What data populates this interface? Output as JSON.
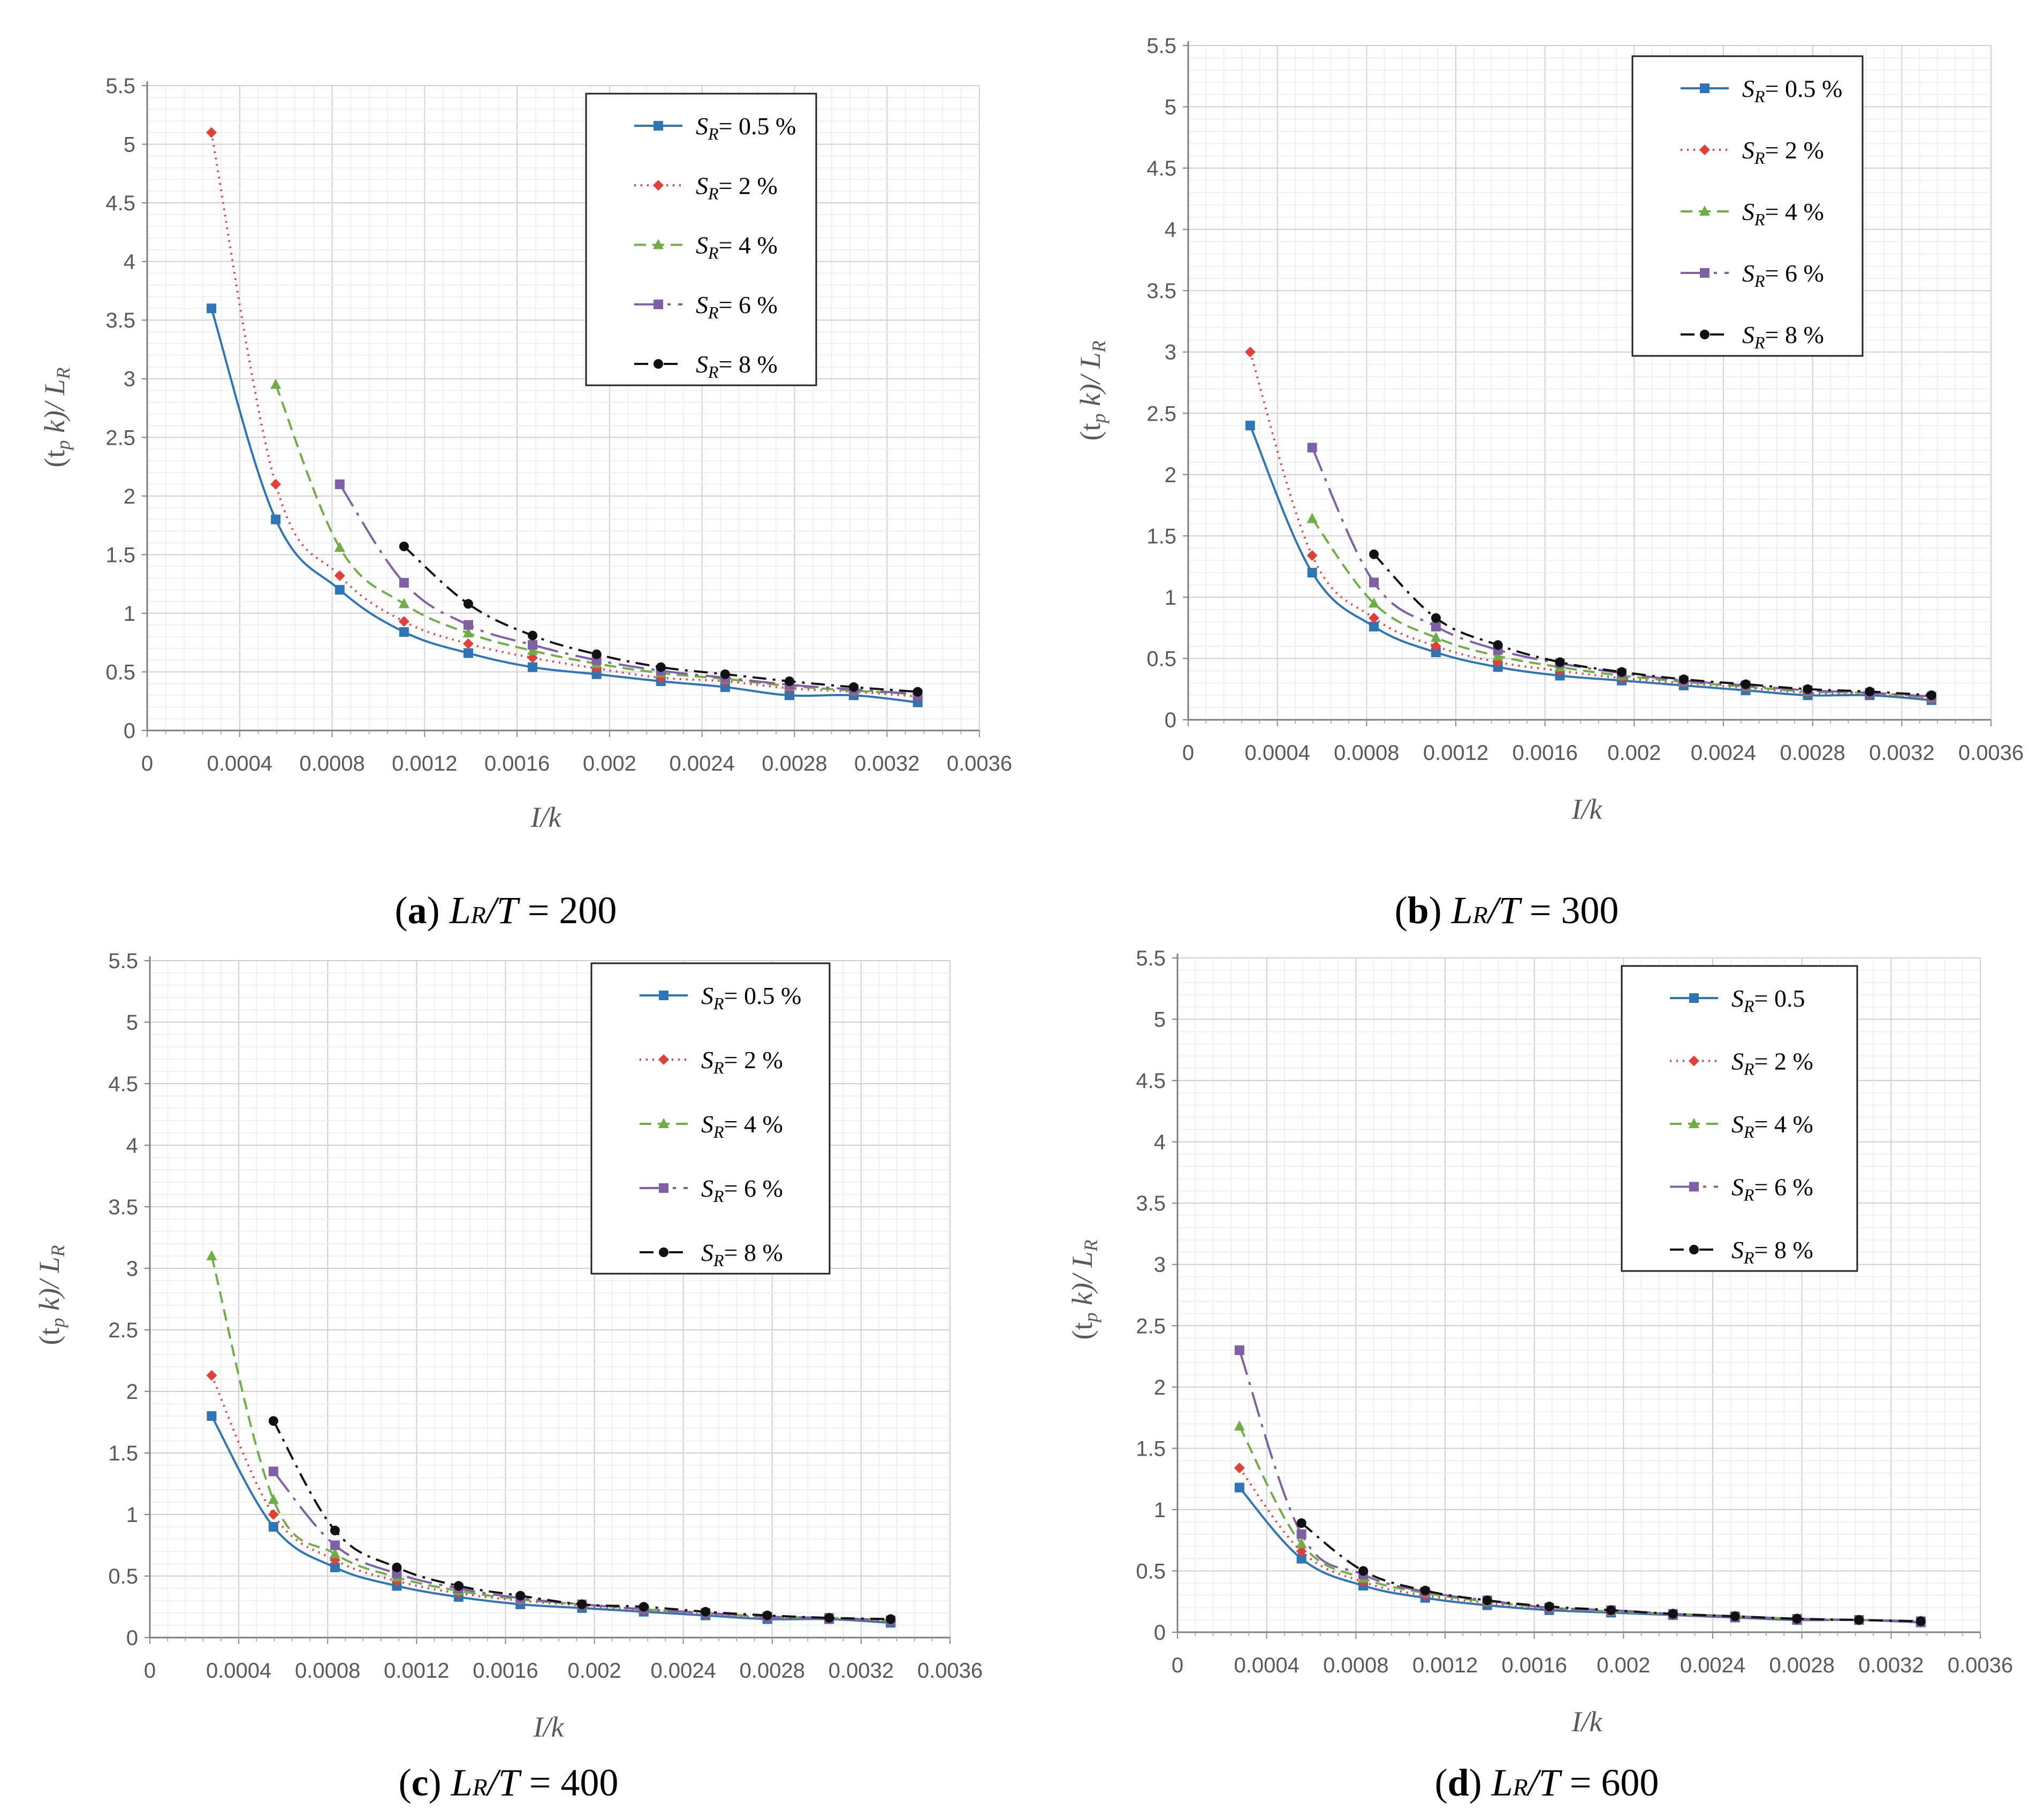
{
  "series_styles": [
    {
      "key": "s05",
      "color": "#2E75B6",
      "marker": "square",
      "dash": ""
    },
    {
      "key": "s2",
      "color": "#E0403A",
      "marker": "diamond",
      "dash": "3,9"
    },
    {
      "key": "s4",
      "color": "#70AD47",
      "marker": "triangle",
      "dash": "22,12"
    },
    {
      "key": "s6",
      "color": "#7F5FA5",
      "marker": "square",
      "dash": "48,14,6,14"
    },
    {
      "key": "s8",
      "color": "#111111",
      "marker": "circle",
      "dash": "26,12,5,12"
    }
  ],
  "chart_data": [
    {
      "id": "a",
      "type": "line",
      "caption": {
        "label": "(a)",
        "ratio_main": "L",
        "ratio_sub": "R",
        "ratio_den": "/T",
        "ratio_value": " = 200"
      },
      "xlabel": "I/k",
      "ylabel": "(t",
      "ylabel_sub": "p",
      "ylabel_rest": " k)/ L",
      "ylabel_sub2": "R",
      "xlim": [
        0,
        0.0036
      ],
      "ylim": [
        0,
        5.5
      ],
      "xticks": [
        "0",
        "0.0004",
        "0.0008",
        "0.0012",
        "0.0016",
        "0.002",
        "0.0024",
        "0.0028",
        "0.0032",
        "0.0036"
      ],
      "yticks": [
        "0",
        "0.5",
        "1",
        "1.5",
        "2",
        "2.5",
        "3",
        "3.5",
        "4",
        "4.5",
        "5",
        "5.5"
      ],
      "series": [
        {
          "name": "S",
          "sub": "R",
          "label": "= 0.5 %",
          "x": [
            0.000278,
            0.000556,
            0.000833,
            0.001111,
            0.001389,
            0.001667,
            0.001944,
            0.002222,
            0.0025,
            0.002778,
            0.003056,
            0.003333
          ],
          "values": [
            3.6,
            1.8,
            1.2,
            0.84,
            0.66,
            0.54,
            0.48,
            0.42,
            0.37,
            0.3,
            0.3,
            0.24
          ]
        },
        {
          "name": "S",
          "sub": "R",
          "label": "= 2 %",
          "x": [
            0.000278,
            0.000556,
            0.000833,
            0.001111,
            0.001389,
            0.001667,
            0.001944,
            0.002222,
            0.0025,
            0.002778,
            0.003056,
            0.003333
          ],
          "values": [
            5.1,
            2.1,
            1.32,
            0.93,
            0.74,
            0.62,
            0.53,
            0.45,
            0.42,
            0.36,
            0.33,
            0.29
          ]
        },
        {
          "name": "S",
          "sub": "R",
          "label": "= 4 %",
          "x": [
            0.000556,
            0.000833,
            0.001111,
            0.001389,
            0.001667,
            0.001944,
            0.002222,
            0.0025,
            0.002778,
            0.003056,
            0.003333
          ],
          "values": [
            2.95,
            1.56,
            1.08,
            0.83,
            0.68,
            0.57,
            0.49,
            0.44,
            0.38,
            0.34,
            0.31
          ]
        },
        {
          "name": "S",
          "sub": "R",
          "label": "= 6 %",
          "x": [
            0.000833,
            0.001111,
            0.001389,
            0.001667,
            0.001944,
            0.002222,
            0.0025,
            0.002778,
            0.003056,
            0.003333
          ],
          "values": [
            2.1,
            1.26,
            0.9,
            0.73,
            0.6,
            0.51,
            0.45,
            0.39,
            0.35,
            0.31
          ]
        },
        {
          "name": "S",
          "sub": "R",
          "label": "= 8 %",
          "x": [
            0.001111,
            0.001389,
            0.001667,
            0.001944,
            0.002222,
            0.0025,
            0.002778,
            0.003056,
            0.003333
          ],
          "values": [
            1.57,
            1.08,
            0.81,
            0.65,
            0.54,
            0.48,
            0.42,
            0.37,
            0.33
          ]
        }
      ]
    },
    {
      "id": "b",
      "type": "line",
      "caption": {
        "label": "(b)",
        "ratio_main": "L",
        "ratio_sub": "R",
        "ratio_den": "/T",
        "ratio_value": " = 300"
      },
      "xlabel": "I/k",
      "ylabel": "(t",
      "ylabel_sub": "p",
      "ylabel_rest": " k)/ L",
      "ylabel_sub2": "R",
      "xlim": [
        0,
        0.0036
      ],
      "ylim": [
        0,
        5.5
      ],
      "xticks": [
        "0",
        "0.0004",
        "0.0008",
        "0.0012",
        "0.0016",
        "0.002",
        "0.0024",
        "0.0028",
        "0.0032",
        "0.0036"
      ],
      "yticks": [
        "0",
        "0.5",
        "1",
        "1.5",
        "2",
        "2.5",
        "3",
        "3.5",
        "4",
        "4.5",
        "5",
        "5.5"
      ],
      "series": [
        {
          "name": "S",
          "sub": "R",
          "label": "= 0.5 %",
          "x": [
            0.000278,
            0.000556,
            0.000833,
            0.001111,
            0.001389,
            0.001667,
            0.001944,
            0.002222,
            0.0025,
            0.002778,
            0.003056,
            0.003333
          ],
          "values": [
            2.4,
            1.2,
            0.76,
            0.55,
            0.43,
            0.36,
            0.32,
            0.28,
            0.24,
            0.2,
            0.2,
            0.16
          ]
        },
        {
          "name": "S",
          "sub": "R",
          "label": "= 2 %",
          "x": [
            0.000278,
            0.000556,
            0.000833,
            0.001111,
            0.001389,
            0.001667,
            0.001944,
            0.002222,
            0.0025,
            0.002778,
            0.003056,
            0.003333
          ],
          "values": [
            3.0,
            1.34,
            0.83,
            0.6,
            0.47,
            0.4,
            0.34,
            0.3,
            0.26,
            0.22,
            0.21,
            0.17
          ]
        },
        {
          "name": "S",
          "sub": "R",
          "label": "= 4 %",
          "x": [
            0.000556,
            0.000833,
            0.001111,
            0.001389,
            0.001667,
            0.001944,
            0.002222,
            0.0025,
            0.002778,
            0.003056,
            0.003333
          ],
          "values": [
            1.64,
            0.95,
            0.67,
            0.52,
            0.43,
            0.36,
            0.31,
            0.27,
            0.23,
            0.22,
            0.18
          ]
        },
        {
          "name": "S",
          "sub": "R",
          "label": "= 6 %",
          "x": [
            0.000556,
            0.000833,
            0.001111,
            0.001389,
            0.001667,
            0.001944,
            0.002222,
            0.0025,
            0.002778,
            0.003056,
            0.003333
          ],
          "values": [
            2.22,
            1.12,
            0.76,
            0.57,
            0.46,
            0.38,
            0.32,
            0.28,
            0.24,
            0.22,
            0.19
          ]
        },
        {
          "name": "S",
          "sub": "R",
          "label": "= 8 %",
          "x": [
            0.000833,
            0.001111,
            0.001389,
            0.001667,
            0.001944,
            0.002222,
            0.0025,
            0.002778,
            0.003056,
            0.003333
          ],
          "values": [
            1.35,
            0.83,
            0.61,
            0.47,
            0.39,
            0.33,
            0.29,
            0.25,
            0.23,
            0.2
          ]
        }
      ]
    },
    {
      "id": "c",
      "type": "line",
      "caption": {
        "label": "(c)",
        "ratio_main": "L",
        "ratio_sub": "R",
        "ratio_den": "/T",
        "ratio_value": " = 400"
      },
      "xlabel": "I/k",
      "ylabel": "(t",
      "ylabel_sub": "p",
      "ylabel_rest": " k)/ L",
      "ylabel_sub2": "R",
      "xlim": [
        0,
        0.0036
      ],
      "ylim": [
        0,
        5.5
      ],
      "xticks": [
        "0",
        "0.0004",
        "0.0008",
        "0.0012",
        "0.0016",
        "0.002",
        "0.0024",
        "0.0028",
        "0.0032",
        "0.0036"
      ],
      "yticks": [
        "0",
        "0.5",
        "1",
        "1.5",
        "2",
        "2.5",
        "3",
        "3.5",
        "4",
        "4.5",
        "5",
        "5.5"
      ],
      "series": [
        {
          "name": "S",
          "sub": "R",
          "label": "= 0.5 %",
          "x": [
            0.000278,
            0.000556,
            0.000833,
            0.001111,
            0.001389,
            0.001667,
            0.001944,
            0.002222,
            0.0025,
            0.002778,
            0.003056,
            0.003333
          ],
          "values": [
            1.8,
            0.9,
            0.57,
            0.42,
            0.33,
            0.27,
            0.24,
            0.21,
            0.18,
            0.15,
            0.15,
            0.12
          ]
        },
        {
          "name": "S",
          "sub": "R",
          "label": "= 2 %",
          "x": [
            0.000278,
            0.000556,
            0.000833,
            0.001111,
            0.001389,
            0.001667,
            0.001944,
            0.002222,
            0.0025,
            0.002778,
            0.003056,
            0.003333
          ],
          "values": [
            2.13,
            1.0,
            0.63,
            0.46,
            0.36,
            0.3,
            0.26,
            0.22,
            0.19,
            0.16,
            0.15,
            0.13
          ]
        },
        {
          "name": "S",
          "sub": "R",
          "label": "= 4 %",
          "x": [
            0.000278,
            0.000556,
            0.000833,
            0.001111,
            0.001389,
            0.001667,
            0.001944,
            0.002222,
            0.0025,
            0.002778,
            0.003056,
            0.003333
          ],
          "values": [
            3.1,
            1.12,
            0.68,
            0.49,
            0.38,
            0.31,
            0.27,
            0.23,
            0.2,
            0.17,
            0.16,
            0.14
          ]
        },
        {
          "name": "S",
          "sub": "R",
          "label": "= 6 %",
          "x": [
            0.000556,
            0.000833,
            0.001111,
            0.001389,
            0.001667,
            0.001944,
            0.002222,
            0.0025,
            0.002778,
            0.003056,
            0.003333
          ],
          "values": [
            1.35,
            0.75,
            0.52,
            0.4,
            0.32,
            0.27,
            0.23,
            0.2,
            0.17,
            0.16,
            0.14
          ]
        },
        {
          "name": "S",
          "sub": "R",
          "label": "= 8 %",
          "x": [
            0.000556,
            0.000833,
            0.001111,
            0.001389,
            0.001667,
            0.001944,
            0.002222,
            0.0025,
            0.002778,
            0.003056,
            0.003333
          ],
          "values": [
            1.76,
            0.87,
            0.57,
            0.42,
            0.34,
            0.27,
            0.25,
            0.21,
            0.18,
            0.16,
            0.15
          ]
        }
      ]
    },
    {
      "id": "d",
      "type": "line",
      "caption": {
        "label": "(d)",
        "ratio_main": "L",
        "ratio_sub": "R",
        "ratio_den": "/T",
        "ratio_value": " = 600"
      },
      "xlabel": "I/k",
      "ylabel": "(t",
      "ylabel_sub": "p",
      "ylabel_rest": " k)/ L",
      "ylabel_sub2": "R",
      "xlim": [
        0,
        0.0036
      ],
      "ylim": [
        0,
        5.5
      ],
      "xticks": [
        "0",
        "0.0004",
        "0.0008",
        "0.0012",
        "0.0016",
        "0.002",
        "0.0024",
        "0.0028",
        "0.0032",
        "0.0036"
      ],
      "yticks": [
        "0",
        "0.5",
        "1",
        "1.5",
        "2",
        "2.5",
        "3",
        "3.5",
        "4",
        "4.5",
        "5",
        "5.5"
      ],
      "series": [
        {
          "name": "S",
          "sub": "R",
          "label": "= 0.5",
          "x": [
            0.000278,
            0.000556,
            0.000833,
            0.001111,
            0.001389,
            0.001667,
            0.001944,
            0.002222,
            0.0025,
            0.002778,
            0.003056,
            0.003333
          ],
          "values": [
            1.18,
            0.6,
            0.38,
            0.28,
            0.22,
            0.18,
            0.16,
            0.14,
            0.12,
            0.1,
            0.1,
            0.08
          ]
        },
        {
          "name": "S",
          "sub": "R",
          "label": "= 2 %",
          "x": [
            0.000278,
            0.000556,
            0.000833,
            0.001111,
            0.001389,
            0.001667,
            0.001944,
            0.002222,
            0.0025,
            0.002778,
            0.003056,
            0.003333
          ],
          "values": [
            1.34,
            0.66,
            0.41,
            0.3,
            0.24,
            0.19,
            0.17,
            0.14,
            0.12,
            0.1,
            0.1,
            0.08
          ]
        },
        {
          "name": "S",
          "sub": "R",
          "label": "= 4 %",
          "x": [
            0.000278,
            0.000556,
            0.000833,
            0.001111,
            0.001389,
            0.001667,
            0.001944,
            0.002222,
            0.0025,
            0.002778,
            0.003056,
            0.003333
          ],
          "values": [
            1.68,
            0.72,
            0.44,
            0.32,
            0.25,
            0.2,
            0.17,
            0.15,
            0.13,
            0.11,
            0.1,
            0.09
          ]
        },
        {
          "name": "S",
          "sub": "R",
          "label": "= 6 %",
          "x": [
            0.000278,
            0.000556,
            0.000833,
            0.001111,
            0.001389,
            0.001667,
            0.001944,
            0.002222,
            0.0025,
            0.002778,
            0.003056,
            0.003333
          ],
          "values": [
            2.3,
            0.8,
            0.47,
            0.33,
            0.26,
            0.2,
            0.18,
            0.15,
            0.13,
            0.11,
            0.1,
            0.09
          ]
        },
        {
          "name": "S",
          "sub": "R",
          "label": "= 8 %",
          "x": [
            0.000556,
            0.000833,
            0.001111,
            0.001389,
            0.001667,
            0.001944,
            0.002222,
            0.0025,
            0.002778,
            0.003056,
            0.003333
          ],
          "values": [
            0.89,
            0.5,
            0.34,
            0.26,
            0.21,
            0.18,
            0.15,
            0.13,
            0.11,
            0.1,
            0.09
          ]
        }
      ]
    }
  ]
}
